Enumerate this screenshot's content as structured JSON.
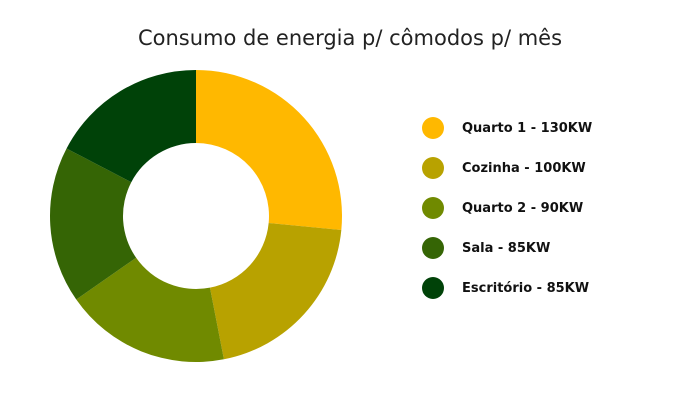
{
  "chart_data": {
    "type": "pie",
    "title": "Consumo de energia p/ cômodos p/ mês",
    "legend_position": "right",
    "donut": true,
    "slices": [
      {
        "label": "Quarto 1 - 130KW",
        "value": 130,
        "color": "#FFB800"
      },
      {
        "label": "Cozinha - 100KW",
        "value": 100,
        "color": "#B8A200"
      },
      {
        "label": "Quarto 2 - 90KW",
        "value": 90,
        "color": "#708A00"
      },
      {
        "label": "Sala - 85KW",
        "value": 85,
        "color": "#356505"
      },
      {
        "label": "Escritório - 85KW",
        "value": 85,
        "color": "#004208"
      }
    ]
  }
}
